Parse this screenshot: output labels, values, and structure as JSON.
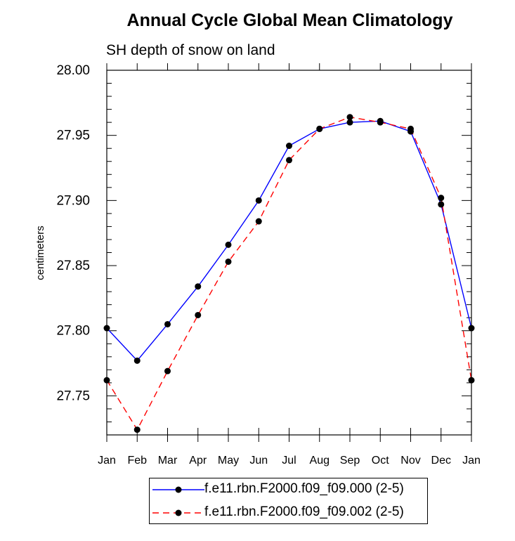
{
  "chart_data": {
    "type": "line",
    "title": "Annual Cycle Global Mean Climatology",
    "subtitle": "SH depth of snow on land",
    "xlabel": "",
    "ylabel": "centimeters",
    "categories": [
      "Jan",
      "Feb",
      "Mar",
      "Apr",
      "May",
      "Jun",
      "Jul",
      "Aug",
      "Sep",
      "Oct",
      "Nov",
      "Dec",
      "Jan"
    ],
    "ylim": [
      27.72,
      28.0
    ],
    "yticks": [
      "27.75",
      "27.80",
      "27.85",
      "27.90",
      "27.95",
      "28.00"
    ],
    "series": [
      {
        "name": "f.e11.rbn.F2000.f09_f09.000 (2-5)",
        "color": "#0000ff",
        "dash": "solid",
        "values": [
          27.802,
          27.777,
          27.805,
          27.834,
          27.866,
          27.9,
          27.942,
          27.955,
          27.96,
          27.961,
          27.953,
          27.897,
          27.802
        ]
      },
      {
        "name": "f.e11.rbn.F2000.f09_f09.002 (2-5)",
        "color": "#ff0000",
        "dash": "dashed",
        "values": [
          27.762,
          27.724,
          27.769,
          27.812,
          27.853,
          27.884,
          27.931,
          27.955,
          27.964,
          27.96,
          27.955,
          27.902,
          27.762
        ]
      }
    ],
    "legend_position": "bottom-center"
  }
}
